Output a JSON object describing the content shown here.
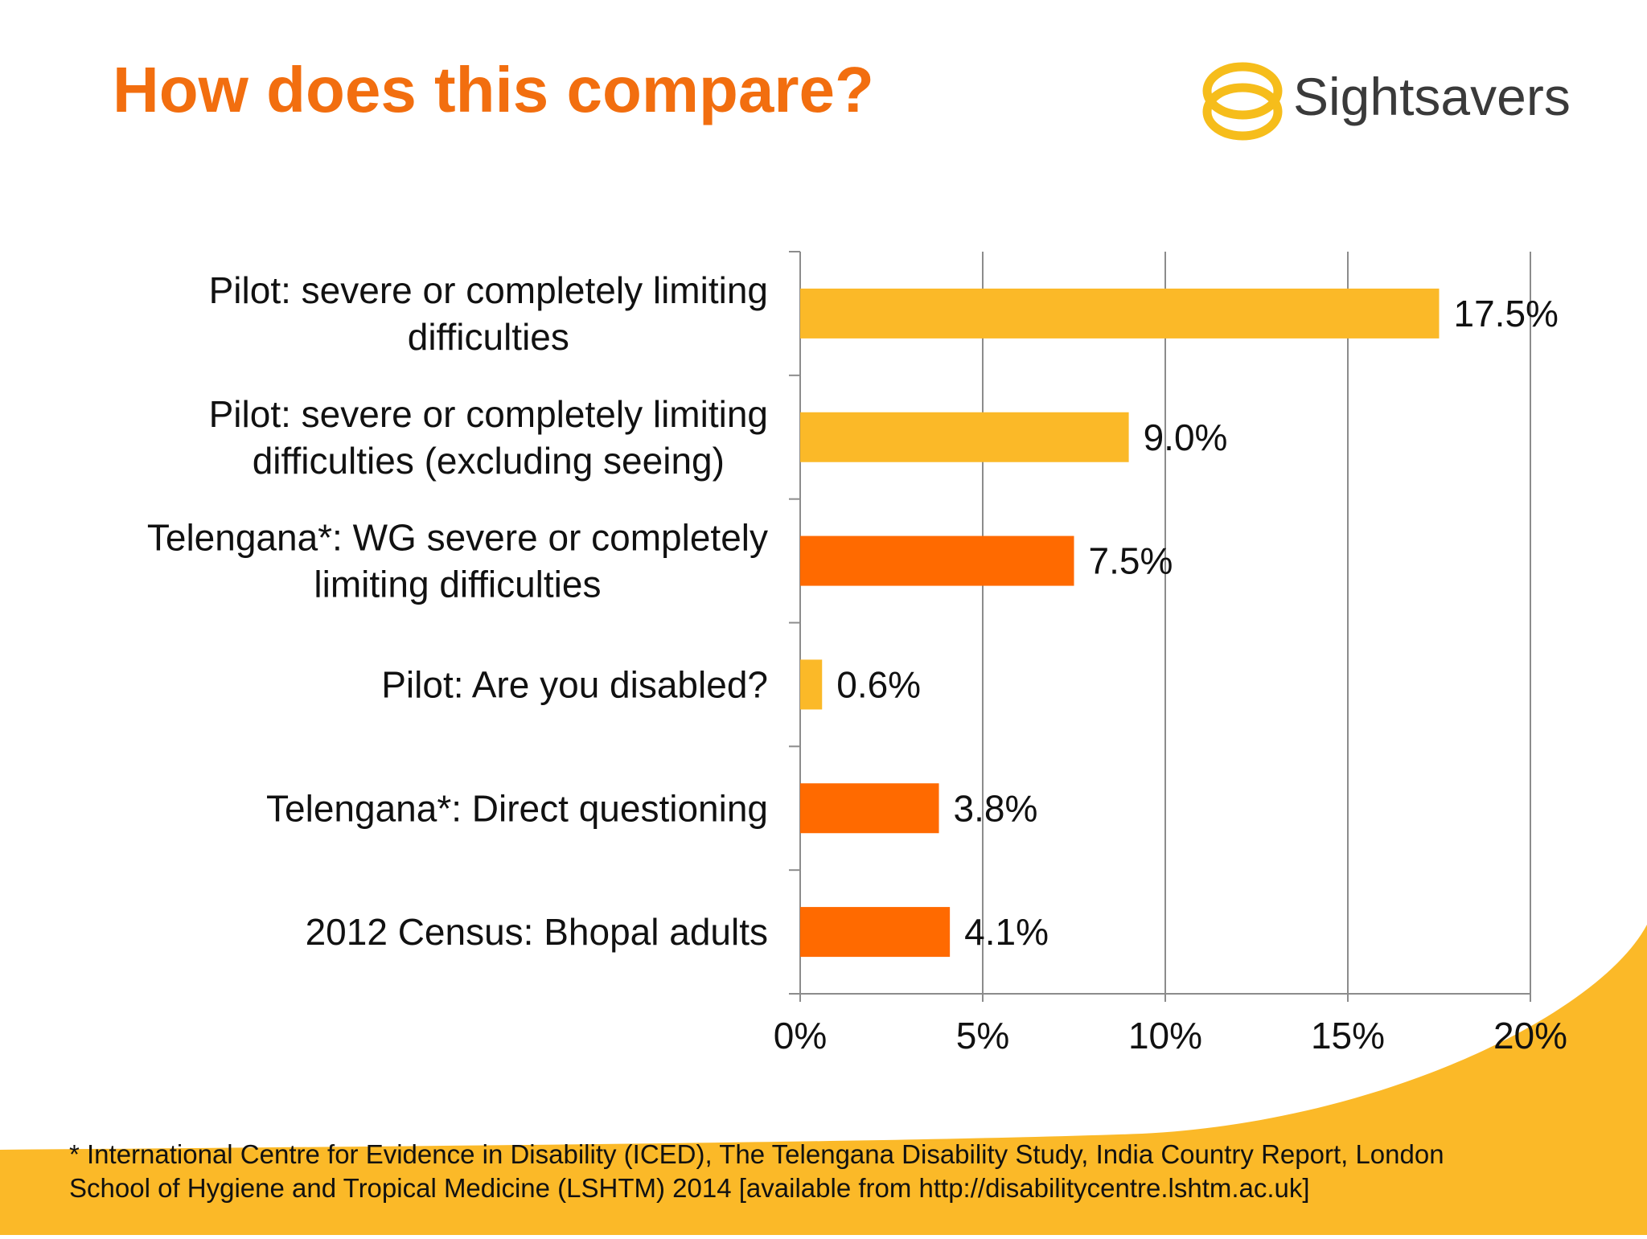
{
  "slide": {
    "title": "How does this compare?",
    "title_color": "#F26E0F",
    "footnote_lines": [
      "* International Centre for Evidence in Disability (ICED), The Telengana Disability Study, India Country Report, London",
      "School of Hygiene and Tropical Medicine (LSHTM) 2014 [available from http://disabilitycentre.lshtm.ac.uk]"
    ],
    "band_color": "#FBB928"
  },
  "logo": {
    "text": "Sightsavers",
    "icon": "sightsavers-rings-icon",
    "ring_color": "#F6BD1B",
    "text_color": "#3A3A3A"
  },
  "chart_data": {
    "type": "bar",
    "orientation": "horizontal",
    "title": "",
    "xlabel": "",
    "ylabel": "",
    "categories": [
      [
        "Pilot: severe or completely limiting",
        "difficulties"
      ],
      [
        "Pilot: severe or completely limiting",
        "difficulties (excluding seeing)"
      ],
      [
        "Telengana*: WG severe or completely",
        "limiting difficulties"
      ],
      [
        "Pilot: Are you disabled?"
      ],
      [
        "Telengana*: Direct questioning"
      ],
      [
        "2012 Census: Bhopal adults"
      ]
    ],
    "values": [
      17.5,
      9.0,
      7.5,
      0.6,
      3.8,
      4.1
    ],
    "value_labels": [
      "17.5%",
      "9.0%",
      "7.5%",
      "0.6%",
      "3.8%",
      "4.1%"
    ],
    "bar_colors": [
      "#FBB928",
      "#FBB928",
      "#FF6A00",
      "#FBB928",
      "#FF6A00",
      "#FF6A00"
    ],
    "xlim": [
      0,
      20
    ],
    "xticks": [
      0,
      5,
      10,
      15,
      20
    ],
    "xtick_labels": [
      "0%",
      "5%",
      "10%",
      "15%",
      "20%"
    ],
    "grid": "vertical gridlines",
    "gridline_color": "#8C8C8C"
  }
}
